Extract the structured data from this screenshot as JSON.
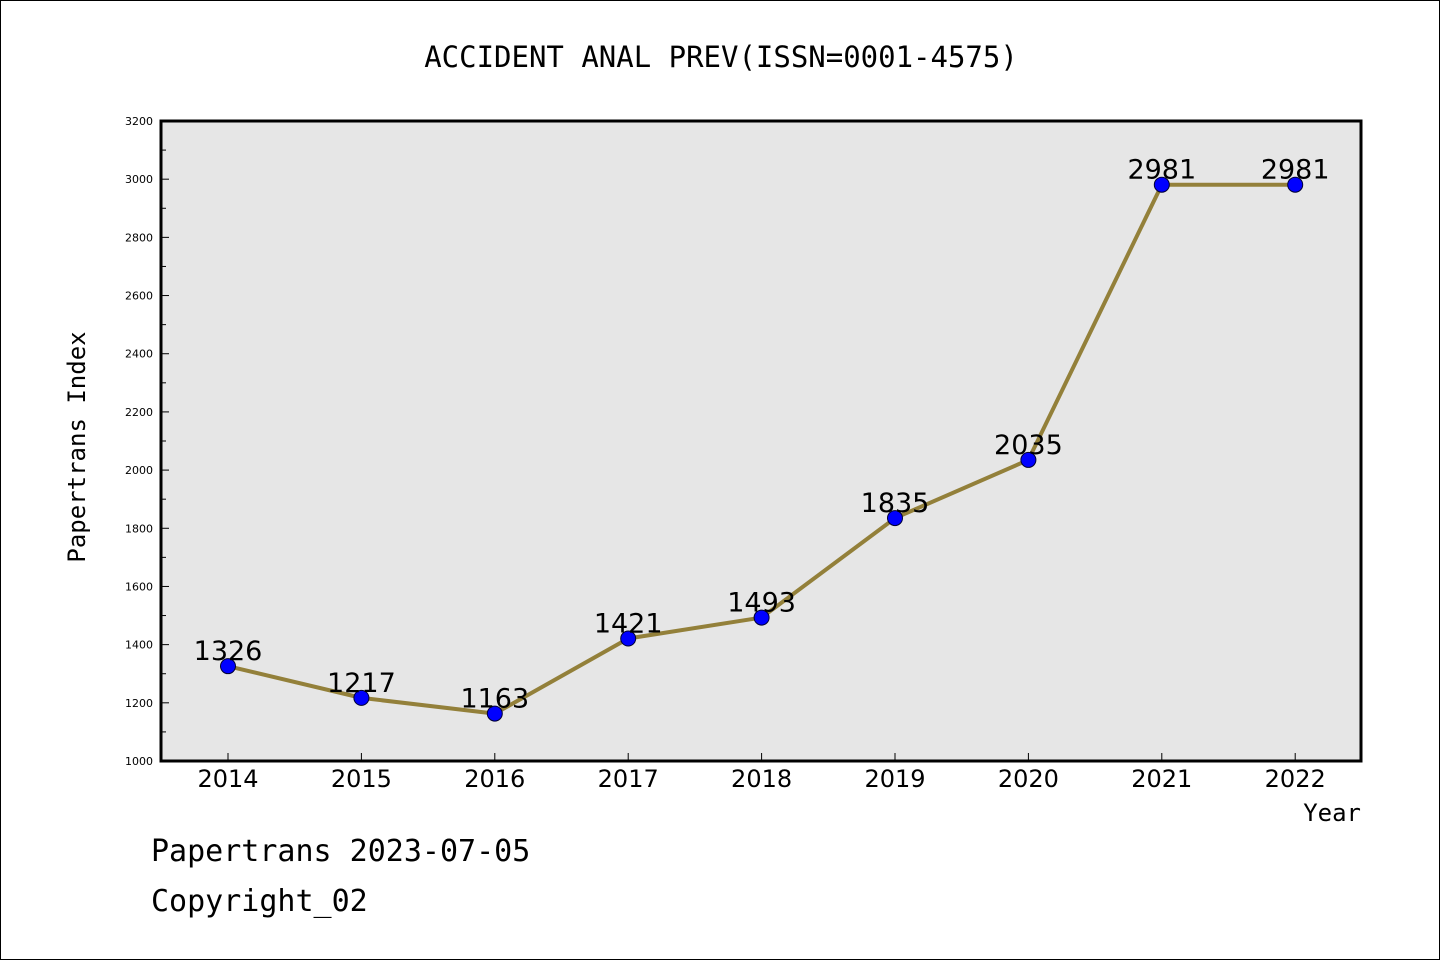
{
  "chart_data": {
    "type": "line",
    "title": "ACCIDENT ANAL PREV(ISSN=0001-4575)",
    "xlabel": "Year",
    "ylabel": "Papertrans Index",
    "categories": [
      "2014",
      "2015",
      "2016",
      "2017",
      "2018",
      "2019",
      "2020",
      "2021",
      "2022"
    ],
    "values": [
      1326,
      1217,
      1163,
      1421,
      1493,
      1835,
      2035,
      2981,
      2981
    ],
    "data_labels": [
      "1326",
      "1217",
      "1163",
      "1421",
      "1493",
      "1835",
      "2035",
      "2981",
      "2981"
    ],
    "ylim": [
      1000,
      3200
    ],
    "yticks": [
      "1000",
      "1200",
      "1400",
      "1600",
      "1800",
      "2000",
      "2200",
      "2400",
      "2600",
      "2800",
      "3000",
      "3200"
    ],
    "grid": false,
    "colors": {
      "line": "#93803a",
      "marker": "#0000ff",
      "plot_background": "#e6e6e6"
    }
  },
  "footer": {
    "line1": "Papertrans 2023-07-05",
    "line2": "Copyright_02"
  }
}
